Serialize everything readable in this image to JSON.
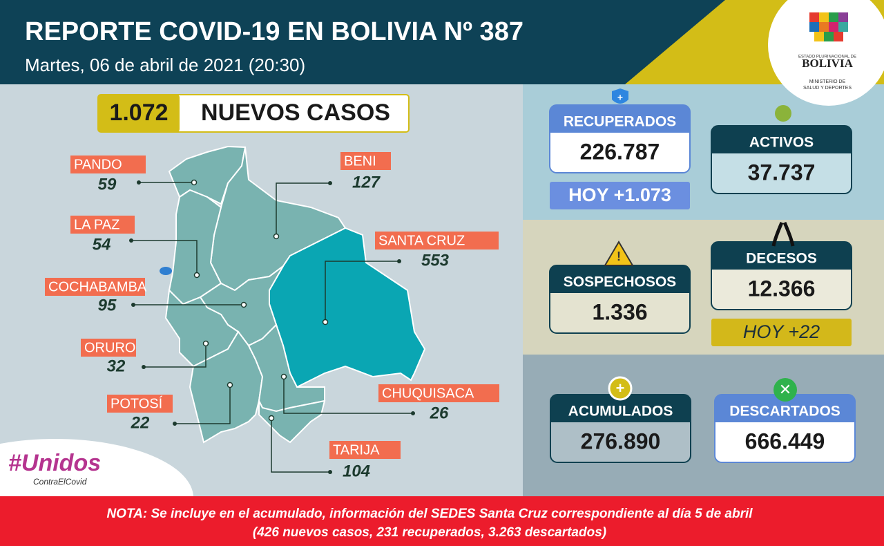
{
  "header": {
    "title": "REPORTE COVID-19 EN BOLIVIA Nº 387",
    "subtitle": "Martes, 06 de abril de 2021 (20:30)"
  },
  "logo": {
    "line1": "ESTADO PLURINACIONAL DE",
    "line2": "BOLIVIA",
    "line3": "MINISTERIO DE",
    "line4": "SALUD Y DEPORTES"
  },
  "new_cases": {
    "value": "1.072",
    "label": "NUEVOS CASOS"
  },
  "departments": [
    {
      "name": "PANDO",
      "cases": "59"
    },
    {
      "name": "BENI",
      "cases": "127"
    },
    {
      "name": "LA PAZ",
      "cases": "54"
    },
    {
      "name": "SANTA CRUZ",
      "cases": "553"
    },
    {
      "name": "COCHABAMBA",
      "cases": "95"
    },
    {
      "name": "ORURO",
      "cases": "32"
    },
    {
      "name": "POTOSÍ",
      "cases": "22"
    },
    {
      "name": "CHUQUISACA",
      "cases": "26"
    },
    {
      "name": "TARIJA",
      "cases": "104"
    }
  ],
  "stats": {
    "recuperados": {
      "label": "RECUPERADOS",
      "value": "226.787",
      "today": "HOY +1.073"
    },
    "activos": {
      "label": "ACTIVOS",
      "value": "37.737"
    },
    "sospechosos": {
      "label": "SOSPECHOSOS",
      "value": "1.336"
    },
    "decesos": {
      "label": "DECESOS",
      "value": "12.366",
      "today": "HOY +22"
    },
    "acumulados": {
      "label": "ACUMULADOS",
      "value": "276.890"
    },
    "descartados": {
      "label": "DESCARTADOS",
      "value": "666.449"
    }
  },
  "hashtag": {
    "line1": "#Unidos",
    "line2": "ContraElCovid"
  },
  "note": {
    "line1": "NOTA: Se incluye en el acumulado, información del SEDES Santa Cruz correspondiente al día 5 de abril",
    "line2": "(426 nuevos casos, 231 recuperados, 3.263 descartados)"
  }
}
